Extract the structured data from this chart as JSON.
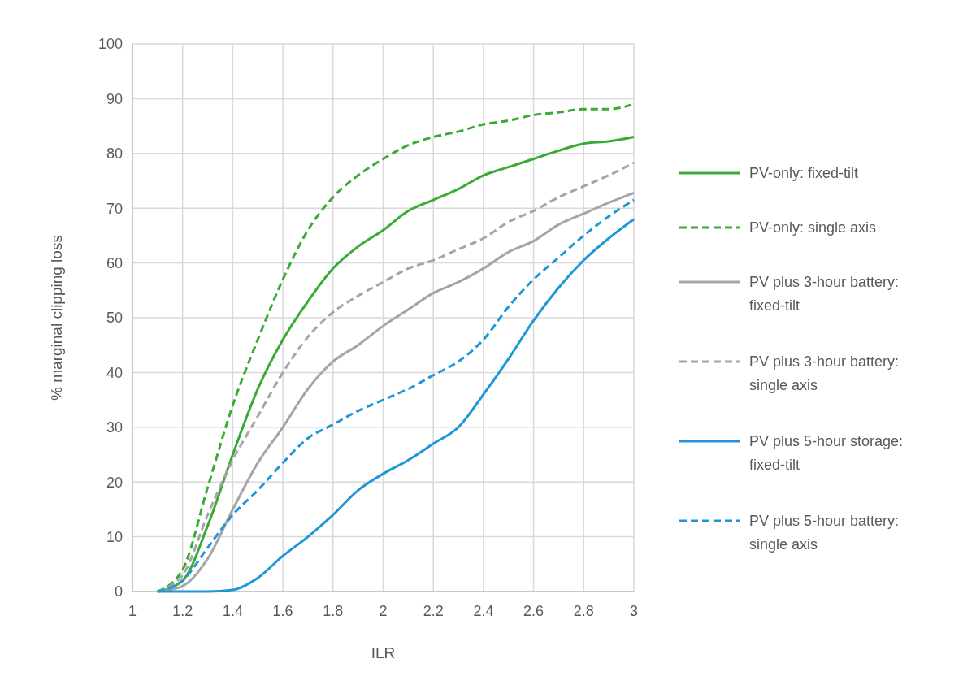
{
  "chart_data": {
    "type": "line",
    "xlabel": "ILR",
    "ylabel": "% marginal clipping loss",
    "x": [
      1.1,
      1.2,
      1.3,
      1.4,
      1.5,
      1.6,
      1.7,
      1.8,
      1.9,
      2.0,
      2.1,
      2.2,
      2.3,
      2.4,
      2.5,
      2.6,
      2.7,
      2.8,
      2.9,
      3.0
    ],
    "series": [
      {
        "name": "PV-only: fixed-tilt",
        "color": "#3aaa35",
        "line_style": "solid",
        "values": [
          0,
          2,
          12,
          25,
          37,
          46,
          53,
          59,
          63,
          66,
          69.5,
          71.5,
          73.5,
          76,
          77.5,
          79,
          80.5,
          81.8,
          82.2,
          83
        ]
      },
      {
        "name": "PV-only: single axis",
        "color": "#3aaa35",
        "line_style": "dashed",
        "values": [
          0,
          4,
          19,
          34,
          46,
          57,
          66,
          72,
          76,
          79,
          81.5,
          83,
          84,
          85.3,
          86,
          87,
          87.5,
          88.1,
          88.1,
          89
        ]
      },
      {
        "name": "PV plus 3-hour battery: fixed-tilt",
        "color": "#a5a5a5",
        "line_style": "solid",
        "values": [
          0,
          1,
          6,
          15,
          23.5,
          30,
          37,
          42,
          45,
          48.5,
          51.5,
          54.5,
          56.5,
          59,
          62,
          64,
          67,
          69,
          71,
          72.8
        ]
      },
      {
        "name": "PV plus 3-hour battery: single axis",
        "color": "#a5a5a5",
        "line_style": "dashed",
        "values": [
          0,
          3,
          14,
          24,
          32,
          40,
          46.5,
          51,
          54,
          56.5,
          59,
          60.5,
          62.5,
          64.5,
          67.5,
          69.5,
          72,
          74,
          76,
          78.3
        ]
      },
      {
        "name": "PV plus 5-hour storage: fixed-tilt",
        "color": "#1e96d8",
        "line_style": "solid",
        "values": [
          0,
          0,
          0,
          0.3,
          2.5,
          6.5,
          10,
          14,
          18.5,
          21.5,
          24,
          27,
          30,
          36,
          42.5,
          49.5,
          55.5,
          60.5,
          64.5,
          68
        ]
      },
      {
        "name": "PV plus 5-hour battery: single axis",
        "color": "#1e96d8",
        "line_style": "dashed",
        "values": [
          0,
          2,
          8,
          14,
          18.5,
          23.5,
          28,
          30.5,
          33,
          35,
          37,
          39.5,
          42,
          46,
          52,
          57,
          61,
          65,
          68.5,
          71.5
        ]
      }
    ],
    "xlim": [
      1,
      3
    ],
    "xticks": [
      1,
      1.2,
      1.4,
      1.6,
      1.8,
      2,
      2.2,
      2.4,
      2.6,
      2.8,
      3
    ],
    "ylim": [
      0,
      100
    ],
    "yticks": [
      0,
      10,
      20,
      30,
      40,
      50,
      60,
      70,
      80,
      90,
      100
    ],
    "grid": true,
    "legend": "right",
    "marker": "none"
  }
}
